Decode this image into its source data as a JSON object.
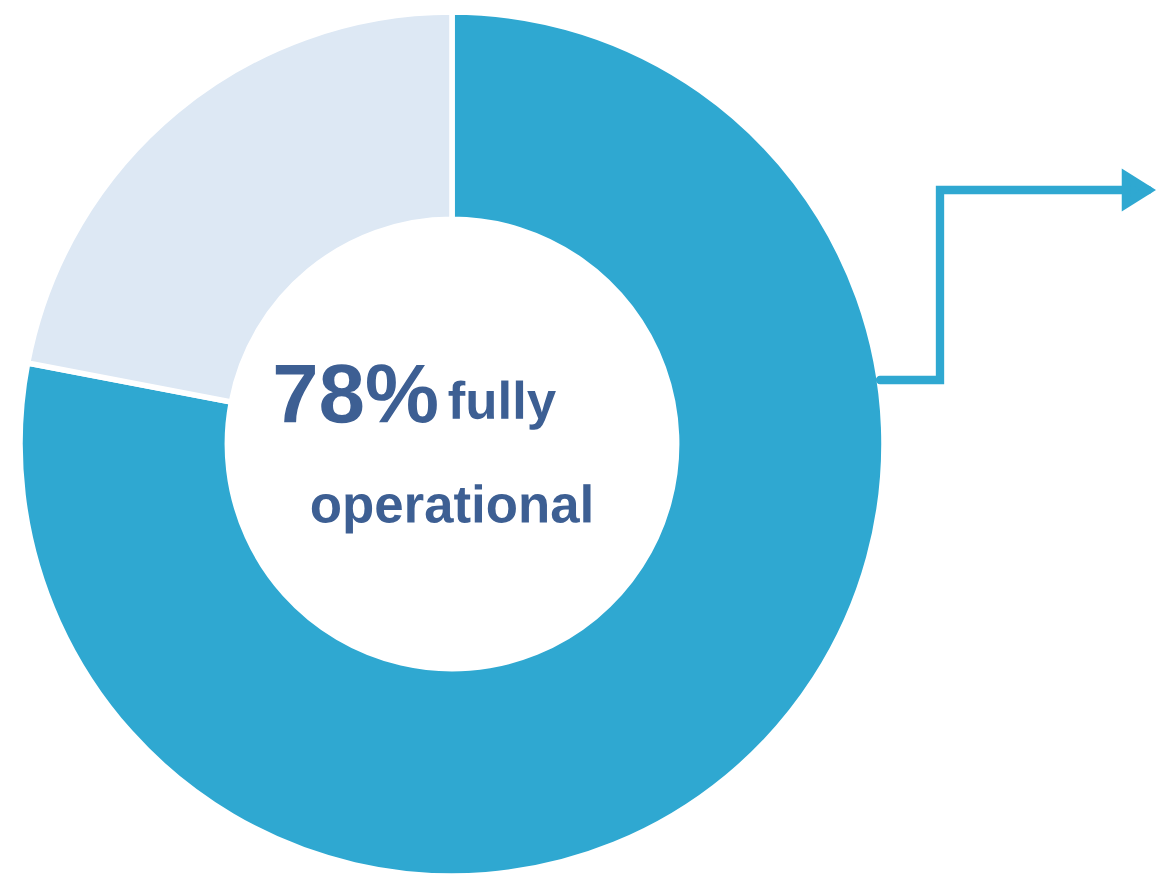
{
  "chart_data": {
    "type": "donut",
    "categories": [
      null,
      null
    ],
    "values": [
      78,
      22
    ],
    "colors": [
      "#2fa8d1",
      "#dde8f4"
    ],
    "annotations": [
      "78%",
      "fully",
      "operational"
    ]
  }
}
